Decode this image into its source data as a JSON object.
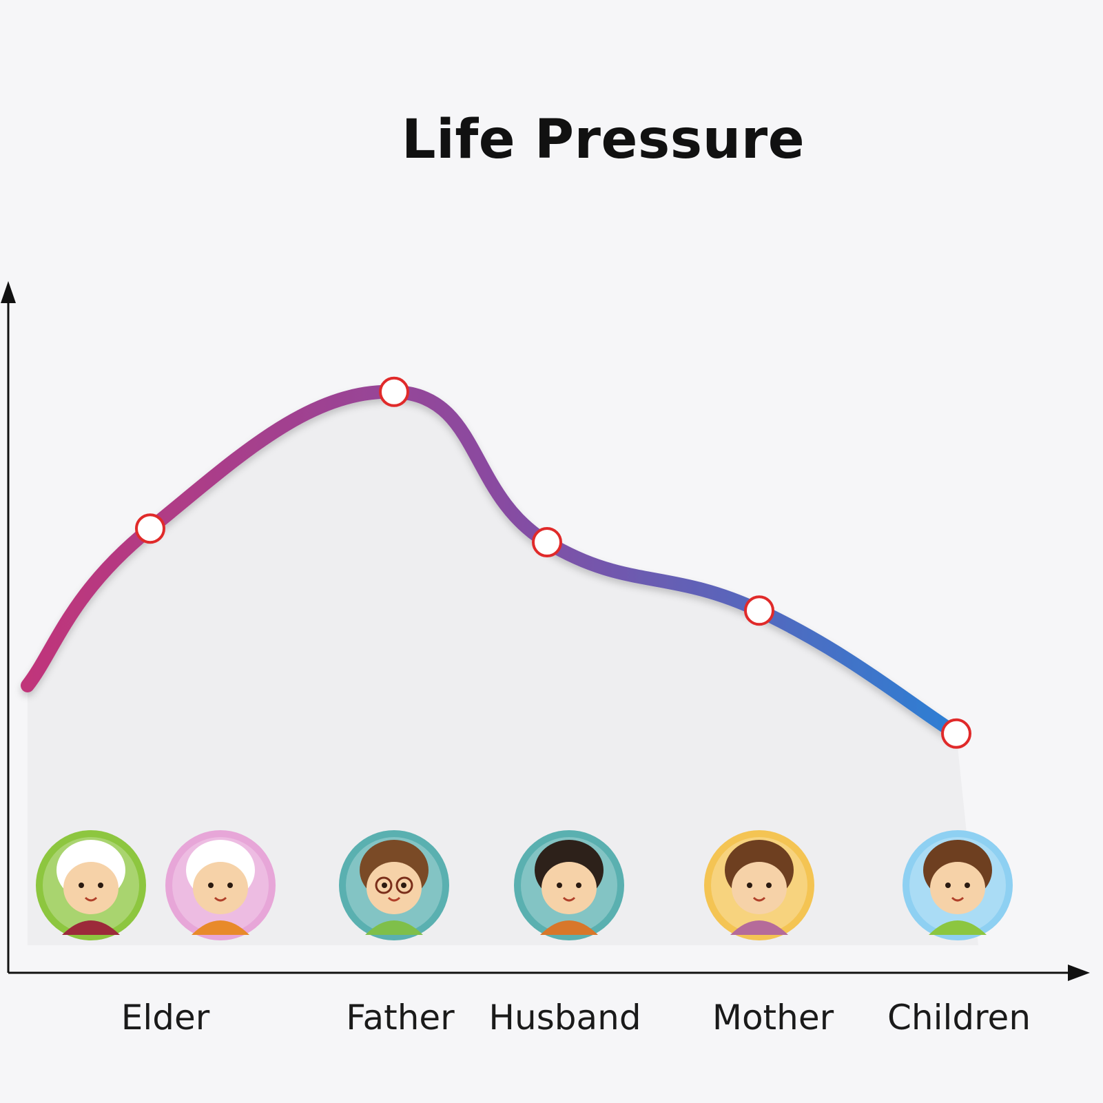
{
  "chart_data": {
    "type": "line",
    "title": "Life Pressure",
    "xlabel": "",
    "ylabel": "",
    "categories": [
      "Elder",
      "Father",
      "Husband",
      "Mother",
      "Children"
    ],
    "series": [
      {
        "values": [
          65,
          85,
          63,
          53,
          35
        ]
      }
    ],
    "ylim": [
      0,
      100
    ],
    "grid": false,
    "legend": "none",
    "colors": {
      "line_start": "#c0357a",
      "line_mid": "#8a4aa0",
      "line_end": "#2c7fd4",
      "marker_fill": "#ffffff",
      "marker_stroke": "#e02a2a",
      "area": "#ececee",
      "axis": "#111111"
    }
  },
  "avatars": [
    {
      "icon": "grandfather-avatar-icon",
      "ring": "#8dc63f"
    },
    {
      "icon": "grandmother-avatar-icon",
      "ring": "#e7a6d8"
    },
    {
      "icon": "father-avatar-icon",
      "ring": "#5ab0b0"
    },
    {
      "icon": "husband-avatar-icon",
      "ring": "#5ab0b0"
    },
    {
      "icon": "mother-avatar-icon",
      "ring": "#f4c453"
    },
    {
      "icon": "child-avatar-icon",
      "ring": "#8ed0f2"
    }
  ]
}
